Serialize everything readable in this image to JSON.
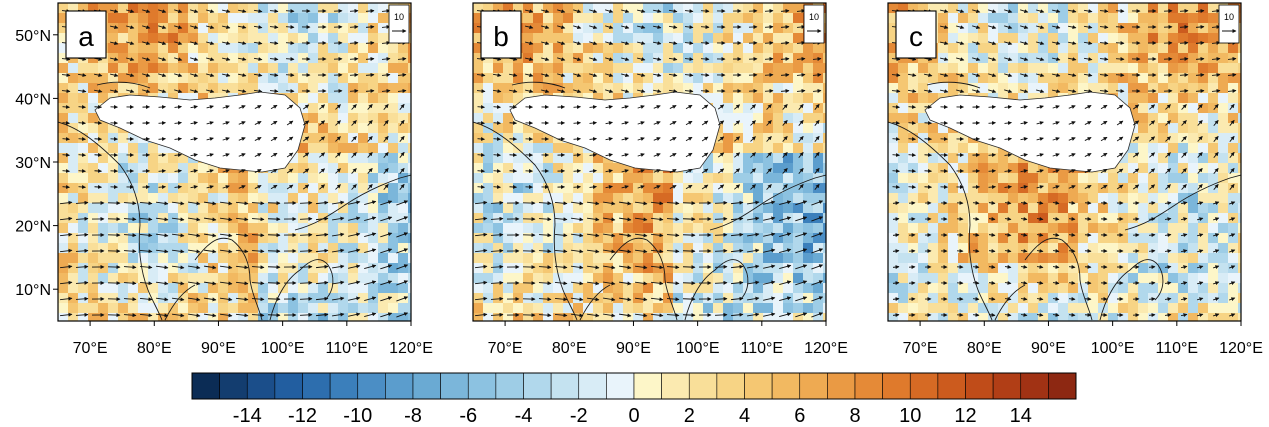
{
  "panels": [
    {
      "label": "a",
      "vector_ref": "10"
    },
    {
      "label": "b",
      "vector_ref": "10"
    },
    {
      "label": "c",
      "vector_ref": "10"
    }
  ],
  "axes": {
    "lat_ticks": [
      "50°N",
      "40°N",
      "30°N",
      "20°N",
      "10°N"
    ],
    "lat_values": [
      50,
      40,
      30,
      20,
      10
    ],
    "lon_ticks": [
      "70°E",
      "80°E",
      "90°E",
      "100°E",
      "110°E",
      "120°E"
    ],
    "lon_values": [
      70,
      80,
      90,
      100,
      110,
      120
    ],
    "lon_range": [
      65,
      120
    ],
    "lat_range": [
      5,
      55
    ]
  },
  "colorbar": {
    "tick_labels": [
      "-14",
      "-12",
      "-10",
      "-8",
      "-6",
      "-4",
      "-2",
      "0",
      "2",
      "4",
      "6",
      "8",
      "10",
      "12",
      "14"
    ],
    "range": [
      -16,
      16
    ],
    "step": 1,
    "negative_colors": [
      "#0b2c55",
      "#133d6f",
      "#1b4e8a",
      "#225ea0",
      "#2d6eae",
      "#3b7fbb",
      "#4b8ec5",
      "#5b9dcd",
      "#6aaad3",
      "#7bb6da",
      "#8cc2e1",
      "#9ecde6",
      "#b1d8ec",
      "#c4e2f0",
      "#d8ecf6",
      "#e9f4fb"
    ],
    "positive_colors": [
      "#fdf6c8",
      "#fbeab0",
      "#f9df99",
      "#f7d485",
      "#f5c772",
      "#f2b961",
      "#eeaa52",
      "#ea9a44",
      "#e58a37",
      "#df7a2c",
      "#d66a24",
      "#cc5b1e",
      "#c04c19",
      "#b13e16",
      "#a13214",
      "#8d2812"
    ]
  },
  "colors": {
    "plateau_mask": "#ffffff",
    "coastline": "#1a1a1a",
    "vector": "#111111"
  }
}
